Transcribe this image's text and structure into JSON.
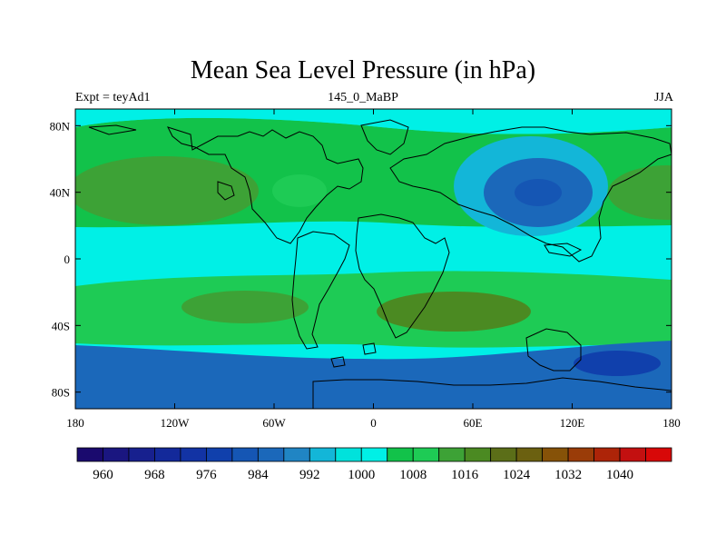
{
  "chart_data": {
    "type": "heatmap",
    "title": "Mean Sea Level Pressure (in hPa)",
    "subtitle_left": "Expt = teyAd1",
    "subtitle_center": "145_0_MaBP",
    "subtitle_right": "JJA",
    "xlabel": "",
    "ylabel": "",
    "xlim": [
      -180,
      180
    ],
    "ylim": [
      -90,
      90
    ],
    "x_ticks": [
      {
        "value": -180,
        "label": "180"
      },
      {
        "value": -120,
        "label": "120W"
      },
      {
        "value": -60,
        "label": "60W"
      },
      {
        "value": 0,
        "label": "0"
      },
      {
        "value": 60,
        "label": "60E"
      },
      {
        "value": 120,
        "label": "120E"
      },
      {
        "value": 180,
        "label": "180"
      }
    ],
    "y_ticks": [
      {
        "value": 80,
        "label": "80N"
      },
      {
        "value": 40,
        "label": "40N"
      },
      {
        "value": 0,
        "label": "0"
      },
      {
        "value": -40,
        "label": "40S"
      },
      {
        "value": -80,
        "label": "80S"
      }
    ],
    "colorbar": {
      "levels": [
        956,
        960,
        964,
        968,
        972,
        976,
        980,
        984,
        988,
        992,
        996,
        1000,
        1004,
        1008,
        1012,
        1016,
        1020,
        1024,
        1028,
        1032,
        1036,
        1040,
        1044
      ],
      "colors": [
        "#1a0a6e",
        "#1a1680",
        "#17208e",
        "#13299a",
        "#1233a4",
        "#1040ac",
        "#1556b4",
        "#1b68ba",
        "#2085c4",
        "#13b6d8",
        "#00e2dc",
        "#00f0e6",
        "#12c24a",
        "#1ecb55",
        "#3da236",
        "#4b8a22",
        "#5b6e18",
        "#6b6010",
        "#865208",
        "#9a3c08",
        "#ad2408",
        "#c31010",
        "#d80808"
      ],
      "labels": [
        "960",
        "968",
        "976",
        "984",
        "992",
        "1000",
        "1008",
        "1016",
        "1024",
        "1032",
        "1040"
      ],
      "label_levels": [
        960,
        968,
        976,
        984,
        992,
        1000,
        1008,
        1016,
        1024,
        1032,
        1040
      ]
    },
    "approximate_pressure_regions": [
      {
        "name": "background",
        "value": 1002
      },
      {
        "name": "north-hemisphere-band",
        "value": 1006
      },
      {
        "name": "n-pacific-high",
        "value": 1014
      },
      {
        "name": "n-atlantic-high",
        "value": 1011
      },
      {
        "name": "e-pacific-high",
        "value": 1013
      },
      {
        "name": "tropics",
        "value": 1001
      },
      {
        "name": "southern-subtropical-high",
        "value": 1009
      },
      {
        "name": "south-indian-high",
        "value": 1016
      },
      {
        "name": "s-pacific-high",
        "value": 1013
      },
      {
        "name": "southern-ocean-trough",
        "value": 986
      },
      {
        "name": "antarctic-coast-low",
        "value": 976
      },
      {
        "name": "asian-low",
        "value": 993
      },
      {
        "name": "asian-low-core",
        "value": 986
      },
      {
        "name": "asian-low-center",
        "value": 980
      },
      {
        "name": "arctic",
        "value": 1003
      }
    ]
  }
}
